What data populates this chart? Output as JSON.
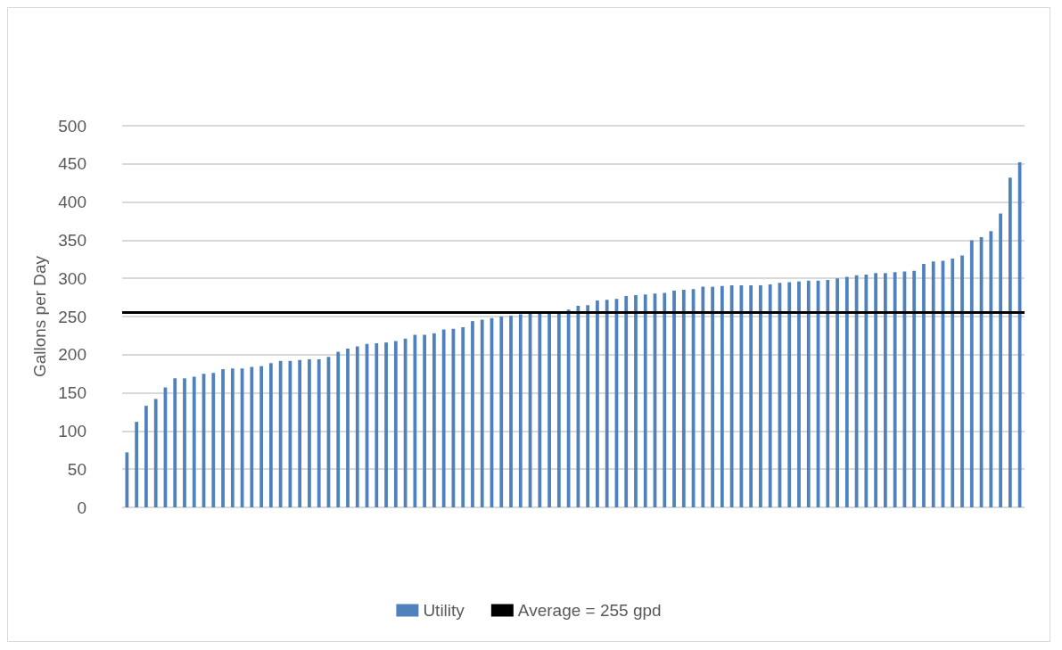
{
  "chart_data": {
    "type": "bar",
    "ylabel": "Gallons per Day",
    "categories": [
      null,
      null,
      null,
      null,
      null,
      null,
      null,
      null,
      null,
      null,
      null,
      null,
      null,
      null,
      null,
      null,
      null,
      null,
      null,
      null,
      null,
      null,
      null,
      null,
      null,
      null,
      null,
      null,
      null,
      null,
      null,
      null,
      null,
      null,
      null,
      null,
      null,
      null,
      null,
      null,
      null,
      null,
      null,
      null,
      null,
      null,
      null,
      null,
      null,
      null,
      null,
      null,
      null,
      null,
      null,
      null,
      null,
      null,
      null,
      null,
      null,
      null,
      null,
      null,
      null,
      null,
      null,
      null,
      null,
      null,
      null,
      null,
      null,
      null,
      null,
      null,
      null,
      null,
      null,
      null,
      null,
      null,
      null,
      null,
      null,
      null,
      null,
      null,
      null,
      null,
      null,
      null,
      null,
      null
    ],
    "series": [
      {
        "name": "Utility",
        "color": "#4f81bd",
        "values": [
          72,
          112,
          133,
          142,
          157,
          169,
          169,
          171,
          175,
          176,
          181,
          182,
          182,
          184,
          185,
          189,
          192,
          192,
          193,
          194,
          194,
          197,
          204,
          208,
          211,
          214,
          215,
          216,
          218,
          221,
          226,
          226,
          228,
          233,
          234,
          236,
          244,
          246,
          248,
          250,
          251,
          253,
          255,
          255,
          256,
          257,
          259,
          264,
          265,
          271,
          272,
          273,
          277,
          278,
          279,
          280,
          281,
          284,
          285,
          286,
          289,
          289,
          290,
          291,
          291,
          291,
          291,
          292,
          294,
          295,
          296,
          297,
          297,
          298,
          300,
          302,
          304,
          305,
          307,
          307,
          308,
          309,
          310,
          319,
          322,
          323,
          326,
          330,
          350,
          354,
          362,
          385,
          432,
          452
        ]
      }
    ],
    "ref_lines": [
      {
        "axis": "y",
        "value": 255,
        "label": "Average = 255 gpd",
        "color": "#000000"
      }
    ],
    "ylim": [
      0,
      500
    ],
    "yticks": [
      0,
      50,
      100,
      150,
      200,
      250,
      300,
      350,
      400,
      450,
      500
    ],
    "grid": "y",
    "legend": "bottom"
  }
}
